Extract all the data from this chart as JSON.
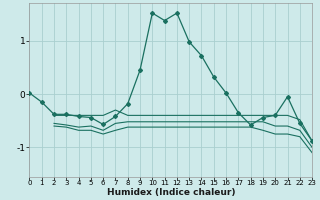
{
  "xlabel": "Humidex (Indice chaleur)",
  "bg_color": "#ceeaea",
  "grid_color": "#aacfcf",
  "line_color": "#1a7060",
  "xlim": [
    0,
    23
  ],
  "ylim": [
    -1.55,
    1.7
  ],
  "yticks": [
    -1,
    0,
    1
  ],
  "xticks": [
    0,
    1,
    2,
    3,
    4,
    5,
    6,
    7,
    8,
    9,
    10,
    11,
    12,
    13,
    14,
    15,
    16,
    17,
    18,
    19,
    20,
    21,
    22,
    23
  ],
  "line1_x": [
    0,
    1,
    2,
    3,
    4,
    5,
    6,
    7,
    8,
    9,
    10,
    11,
    12,
    13,
    14,
    15,
    16,
    17,
    18,
    19,
    20,
    21,
    22,
    23
  ],
  "line1_y": [
    0.02,
    -0.15,
    -0.38,
    -0.38,
    -0.42,
    -0.44,
    -0.57,
    -0.42,
    -0.18,
    0.45,
    1.52,
    1.38,
    1.52,
    0.98,
    0.72,
    0.32,
    0.02,
    -0.35,
    -0.58,
    -0.44,
    -0.4,
    -0.05,
    -0.55,
    -0.88
  ],
  "line2_x": [
    2,
    3,
    4,
    5,
    6,
    7,
    8,
    9,
    10,
    11,
    12,
    13,
    14,
    15,
    16,
    17,
    18,
    19,
    20,
    21,
    22,
    23
  ],
  "line2_y": [
    -0.4,
    -0.4,
    -0.4,
    -0.4,
    -0.4,
    -0.3,
    -0.4,
    -0.4,
    -0.4,
    -0.4,
    -0.4,
    -0.4,
    -0.4,
    -0.4,
    -0.4,
    -0.4,
    -0.4,
    -0.4,
    -0.4,
    -0.4,
    -0.48,
    -0.88
  ],
  "line3_x": [
    2,
    3,
    4,
    5,
    6,
    7,
    8,
    9,
    10,
    11,
    12,
    13,
    14,
    15,
    16,
    17,
    18,
    19,
    20,
    21,
    22,
    23
  ],
  "line3_y": [
    -0.55,
    -0.58,
    -0.62,
    -0.6,
    -0.68,
    -0.55,
    -0.52,
    -0.52,
    -0.52,
    -0.52,
    -0.52,
    -0.52,
    -0.52,
    -0.52,
    -0.52,
    -0.52,
    -0.52,
    -0.52,
    -0.6,
    -0.6,
    -0.68,
    -1.0
  ],
  "line4_x": [
    2,
    3,
    4,
    5,
    6,
    7,
    8,
    9,
    10,
    11,
    12,
    13,
    14,
    15,
    16,
    17,
    18,
    19,
    20,
    21,
    22,
    23
  ],
  "line4_y": [
    -0.6,
    -0.62,
    -0.68,
    -0.68,
    -0.75,
    -0.68,
    -0.62,
    -0.62,
    -0.62,
    -0.62,
    -0.62,
    -0.62,
    -0.62,
    -0.62,
    -0.62,
    -0.62,
    -0.62,
    -0.68,
    -0.75,
    -0.75,
    -0.8,
    -1.1
  ]
}
